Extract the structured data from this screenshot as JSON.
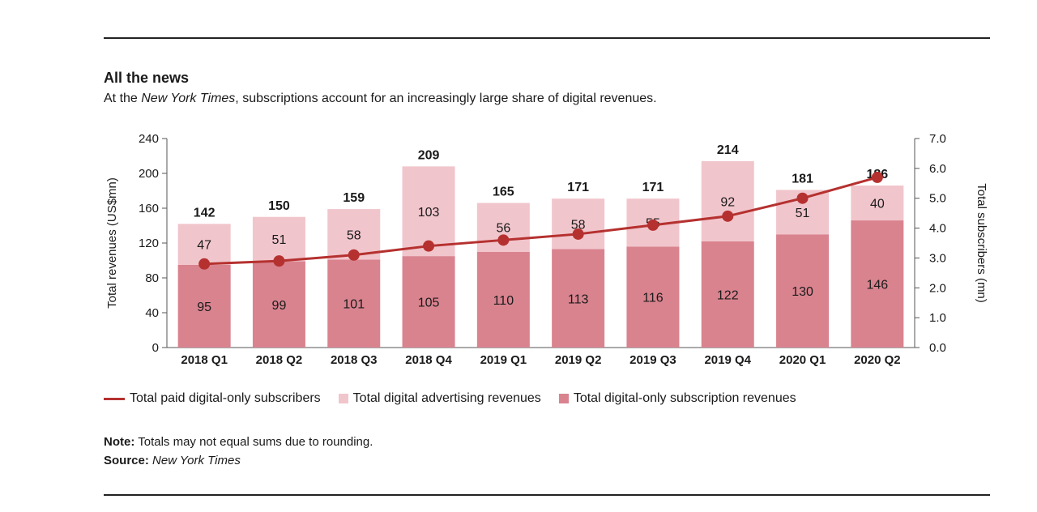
{
  "title": "All the news",
  "subtitle": {
    "prefix": "At the ",
    "italic": "New York Times",
    "suffix": ", subscriptions account for an increasingly large share of digital revenues."
  },
  "chart_data": {
    "type": "bar",
    "stacked": true,
    "categories": [
      "2018 Q1",
      "2018 Q2",
      "2018 Q3",
      "2018 Q4",
      "2019 Q1",
      "2019 Q2",
      "2019 Q3",
      "2019 Q4",
      "2020 Q1",
      "2020 Q2"
    ],
    "series": [
      {
        "name": "Total digital-only subscription revenues",
        "type": "bar",
        "axis": "left",
        "color": "#d9838f",
        "values": [
          95,
          99,
          101,
          105,
          110,
          113,
          116,
          122,
          130,
          146
        ]
      },
      {
        "name": "Total digital advertising revenues",
        "type": "bar",
        "axis": "left",
        "color": "#f1c5cc",
        "values": [
          47,
          51,
          58,
          103,
          56,
          58,
          55,
          92,
          51,
          40
        ]
      },
      {
        "name": "Total paid digital-only subscribers",
        "type": "line",
        "axis": "right",
        "color": "#b5312f",
        "values": [
          2.8,
          2.9,
          3.1,
          3.4,
          3.6,
          3.8,
          4.1,
          4.4,
          5.0,
          5.7
        ]
      }
    ],
    "totals": [
      142,
      150,
      159,
      209,
      165,
      171,
      171,
      214,
      181,
      186
    ],
    "ylabel": "Total revenues (US$mn)",
    "ylim": [
      0,
      240
    ],
    "yticks": [
      "0",
      "40",
      "80",
      "120",
      "160",
      "200",
      "240"
    ],
    "y2label": "Total subscribers (mn)",
    "y2lim": [
      0,
      7
    ],
    "y2ticks": [
      "0.0",
      "1.0",
      "2.0",
      "3.0",
      "4.0",
      "5.0",
      "6.0",
      "7.0"
    ],
    "grid": false,
    "legend_position": "bottom"
  },
  "legend": {
    "line": "Total paid digital-only subscribers",
    "advertising": "Total digital advertising revenues",
    "subscription": "Total digital-only subscription revenues"
  },
  "note": {
    "label": "Note:",
    "text": " Totals may not equal sums due to rounding."
  },
  "source": {
    "label": "Source:",
    "text": "New York Times"
  },
  "colors": {
    "subscription": "#d9838f",
    "advertising": "#f1c5cc",
    "line": "#b5312f",
    "axis": "#555555"
  }
}
